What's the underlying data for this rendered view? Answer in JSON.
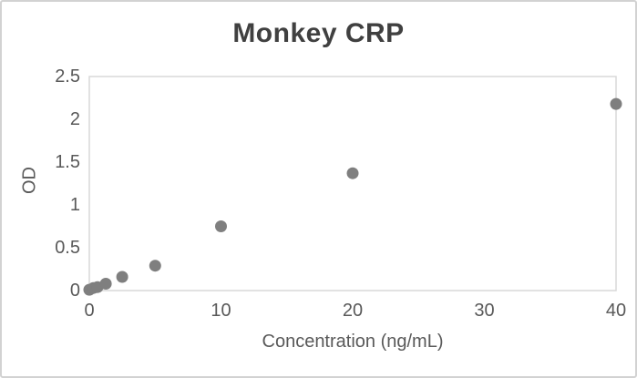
{
  "chart_data": {
    "type": "scatter",
    "title": "Monkey CRP",
    "xlabel": "Concentration (ng/mL)",
    "ylabel": "OD",
    "x": [
      0,
      0.313,
      0.625,
      1.25,
      2.5,
      5,
      10,
      20,
      40
    ],
    "y": [
      0.01,
      0.03,
      0.04,
      0.08,
      0.16,
      0.29,
      0.75,
      1.37,
      2.18
    ],
    "xlim": [
      0,
      40
    ],
    "ylim": [
      0,
      2.5
    ],
    "xticks": [
      0,
      10,
      20,
      30,
      40
    ],
    "yticks": [
      0,
      0.5,
      1,
      1.5,
      2,
      2.5
    ],
    "grid": false,
    "legend": false,
    "marker_diameter_px": 13
  },
  "colors": {
    "background": "#ffffff",
    "card_border": "#d2d2d2",
    "axis_line": "#d9d9d9",
    "marker": "#7f7f7f",
    "tick_text": "#595959",
    "axis_title_text": "#595959",
    "title_text": "#404040"
  }
}
